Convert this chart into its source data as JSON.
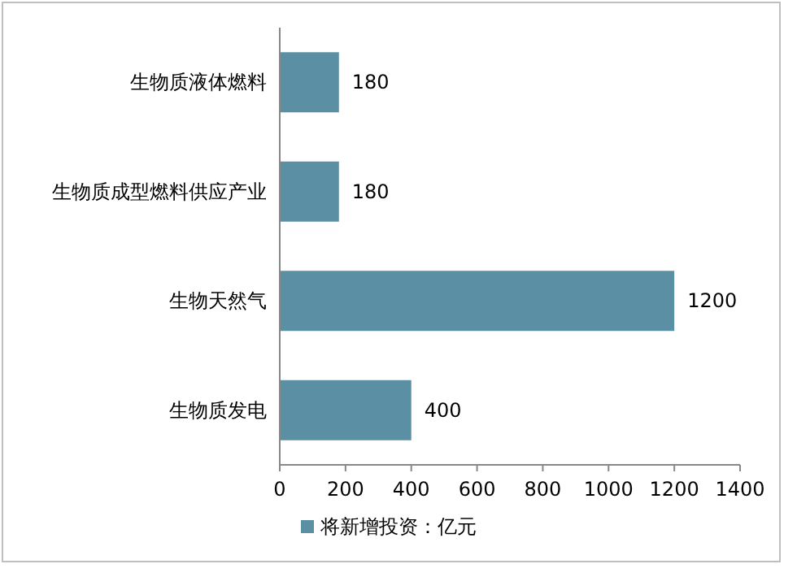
{
  "chart_data": {
    "type": "bar",
    "orientation": "horizontal",
    "categories": [
      "生物质液体燃料",
      "生物质成型燃料供应产业",
      "生物天然气",
      "生物质发电"
    ],
    "series": [
      {
        "name": "将新增投资：亿元",
        "color": "#5b8fa3",
        "values": [
          180,
          180,
          1200,
          400
        ]
      }
    ],
    "xlim": [
      0,
      1400
    ],
    "xticks": [
      0,
      200,
      400,
      600,
      800,
      1000,
      1200,
      1400
    ],
    "data_labels": true,
    "legend": "bottom"
  }
}
